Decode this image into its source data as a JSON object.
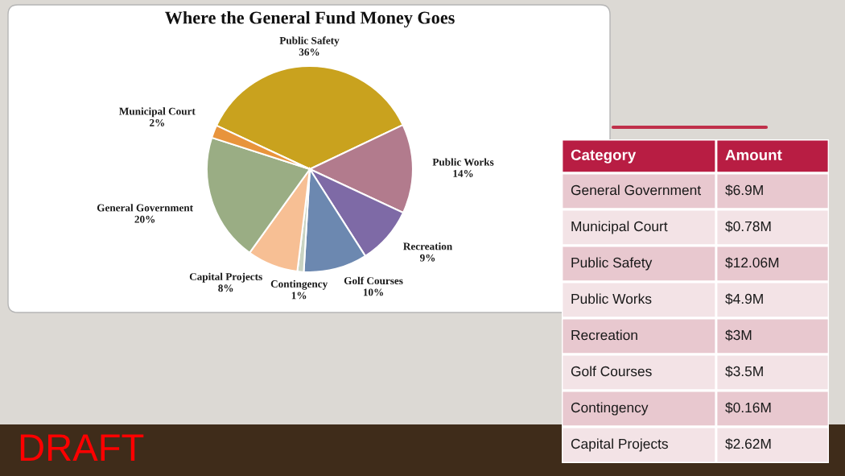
{
  "chart_data": [
    {
      "type": "pie",
      "title": "Where the General Fund Money Goes",
      "categories": [
        "Public Safety",
        "Public Works",
        "Recreation",
        "Golf Courses",
        "Contingency",
        "Capital Projects",
        "General Government",
        "Municipal Court"
      ],
      "values": [
        36,
        14,
        9,
        10,
        1,
        8,
        20,
        2
      ],
      "colors": [
        "#c9a21e",
        "#b27b8d",
        "#7e6aa6",
        "#6c88b0",
        "#c9d3c2",
        "#f7bf94",
        "#9aad84",
        "#e8943c"
      ],
      "value_labels": [
        "36%",
        "14%",
        "9%",
        "10%",
        "1%",
        "8%",
        "20%",
        "2%"
      ],
      "annotations": [
        "DRAFT"
      ]
    },
    {
      "type": "other",
      "categories": [
        "General Government",
        "Municipal Court",
        "Public Safety",
        "Public Works",
        "Recreation",
        "Golf Courses",
        "Contingency",
        "Capital Projects"
      ],
      "values": [
        6.9,
        0.78,
        12.06,
        4.9,
        3,
        3.5,
        0.16,
        2.62
      ],
      "value_labels": [
        "$6.9M",
        "$0.78M",
        "$12.06M",
        "$4.9M",
        "$3M",
        "$3.5M",
        "$0.16M",
        "$2.62M"
      ],
      "annotations": [
        "Category",
        "Amount"
      ]
    }
  ]
}
